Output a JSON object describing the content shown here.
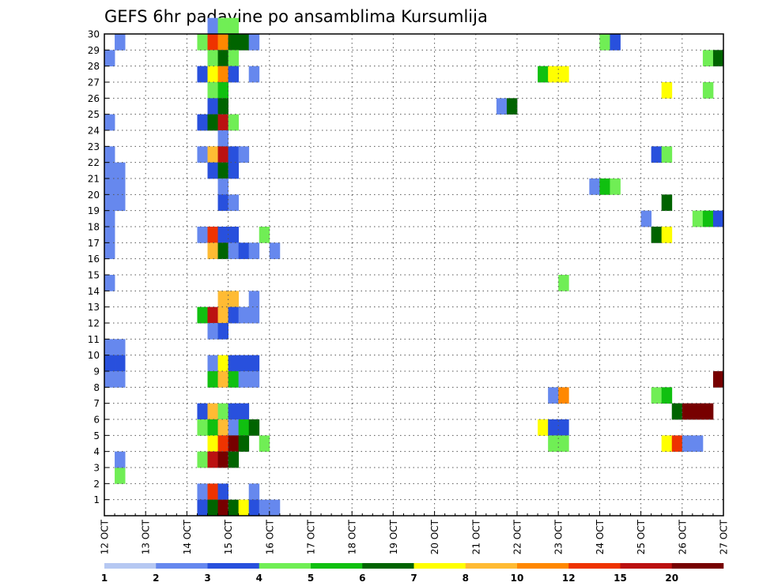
{
  "chart_data": {
    "type": "heatmap",
    "title": "GEFS 6hr padavine po ansamblima Kursumlija",
    "xlabel": "",
    "ylabel": "",
    "x_tick_labels": [
      "12 OCT",
      "13 OCT",
      "14 OCT",
      "15 OCT",
      "16 OCT",
      "17 OCT",
      "18 OCT",
      "19 OCT",
      "20 OCT",
      "21 OCT",
      "22 OCT",
      "23 OCT",
      "24 OCT",
      "25 OCT",
      "26 OCT",
      "27 OCT"
    ],
    "y_tick_labels": [
      "1",
      "2",
      "3",
      "4",
      "5",
      "6",
      "7",
      "8",
      "9",
      "10",
      "11",
      "12",
      "13",
      "14",
      "15",
      "16",
      "17",
      "18",
      "19",
      "20",
      "21",
      "22",
      "23",
      "24",
      "25",
      "26",
      "27",
      "28",
      "29",
      "30"
    ],
    "x_range_days": [
      0,
      15
    ],
    "y_range": [
      0,
      30
    ],
    "time_step_hours": 6,
    "grid": "dotted",
    "colorbar": {
      "labels": [
        "1",
        "2",
        "3",
        "4",
        "5",
        "6",
        "7",
        "8",
        "10",
        "12",
        "15",
        "20"
      ],
      "colors": [
        "#b6c8f2",
        "#6688ee",
        "#2850dd",
        "#70ee55",
        "#10c010",
        "#006400",
        "#ffff00",
        "#ffbb33",
        "#ff8800",
        "#ee3300",
        "#bb1111",
        "#770000"
      ]
    },
    "cells": [
      [
        0.25,
        2,
        3
      ],
      [
        0.25,
        29,
        1
      ],
      [
        0.0,
        28,
        1
      ],
      [
        0.0,
        24,
        1
      ],
      [
        0.0,
        22,
        1
      ],
      [
        0.0,
        21,
        1
      ],
      [
        0.25,
        21,
        1
      ],
      [
        0.0,
        20,
        1
      ],
      [
        0.25,
        20,
        1
      ],
      [
        0.0,
        19,
        1
      ],
      [
        0.25,
        19,
        1
      ],
      [
        0.0,
        18,
        1
      ],
      [
        0.0,
        17,
        1
      ],
      [
        0.0,
        16,
        1
      ],
      [
        0.0,
        14,
        1
      ],
      [
        0.0,
        10,
        1
      ],
      [
        0.25,
        10,
        1
      ],
      [
        0.0,
        9,
        2
      ],
      [
        0.25,
        9,
        2
      ],
      [
        0.0,
        8,
        1
      ],
      [
        0.25,
        8,
        1
      ],
      [
        0.25,
        3,
        1
      ],
      [
        2.25,
        29,
        3
      ],
      [
        2.5,
        29,
        9
      ],
      [
        2.75,
        29,
        8
      ],
      [
        3.0,
        29,
        5
      ],
      [
        3.25,
        29,
        5
      ],
      [
        3.5,
        29,
        1
      ],
      [
        2.5,
        30,
        1
      ],
      [
        2.75,
        30,
        3
      ],
      [
        3.0,
        30,
        3
      ],
      [
        2.5,
        28,
        3
      ],
      [
        2.75,
        28,
        5
      ],
      [
        3.0,
        28,
        3
      ],
      [
        2.25,
        27,
        2
      ],
      [
        2.5,
        27,
        6
      ],
      [
        2.75,
        27,
        8
      ],
      [
        3.0,
        27,
        2
      ],
      [
        3.5,
        27,
        1
      ],
      [
        2.5,
        26,
        3
      ],
      [
        2.75,
        26,
        4
      ],
      [
        2.5,
        25,
        2
      ],
      [
        2.75,
        25,
        5
      ],
      [
        2.25,
        24,
        2
      ],
      [
        2.5,
        24,
        5
      ],
      [
        2.75,
        24,
        10
      ],
      [
        3.0,
        24,
        3
      ],
      [
        2.75,
        23,
        1
      ],
      [
        2.25,
        22,
        1
      ],
      [
        2.5,
        22,
        7
      ],
      [
        2.75,
        22,
        10
      ],
      [
        3.0,
        22,
        2
      ],
      [
        3.25,
        22,
        1
      ],
      [
        2.5,
        21,
        2
      ],
      [
        2.75,
        21,
        5
      ],
      [
        3.0,
        21,
        2
      ],
      [
        2.75,
        20,
        1
      ],
      [
        2.75,
        19,
        2
      ],
      [
        3.0,
        19,
        1
      ],
      [
        2.25,
        17,
        1
      ],
      [
        2.5,
        17,
        9
      ],
      [
        2.75,
        17,
        2
      ],
      [
        3.0,
        17,
        2
      ],
      [
        3.75,
        17,
        3
      ],
      [
        2.5,
        16,
        7
      ],
      [
        2.75,
        16,
        5
      ],
      [
        3.0,
        16,
        1
      ],
      [
        3.25,
        16,
        2
      ],
      [
        3.5,
        16,
        1
      ],
      [
        4.0,
        16,
        1
      ],
      [
        2.75,
        13,
        7
      ],
      [
        3.0,
        13,
        7
      ],
      [
        3.5,
        13,
        1
      ],
      [
        2.25,
        12,
        4
      ],
      [
        2.5,
        12,
        10
      ],
      [
        2.75,
        12,
        7
      ],
      [
        3.0,
        12,
        2
      ],
      [
        3.25,
        12,
        1
      ],
      [
        3.5,
        12,
        1
      ],
      [
        2.5,
        11,
        1
      ],
      [
        2.75,
        11,
        2
      ],
      [
        2.5,
        9,
        1
      ],
      [
        2.75,
        9,
        6
      ],
      [
        3.0,
        9,
        2
      ],
      [
        3.25,
        9,
        2
      ],
      [
        3.5,
        9,
        2
      ],
      [
        2.5,
        8,
        4
      ],
      [
        2.75,
        8,
        7
      ],
      [
        3.0,
        8,
        4
      ],
      [
        3.25,
        8,
        1
      ],
      [
        3.5,
        8,
        1
      ],
      [
        2.25,
        6,
        2
      ],
      [
        2.5,
        6,
        7
      ],
      [
        2.75,
        6,
        3
      ],
      [
        3.0,
        6,
        2
      ],
      [
        3.25,
        6,
        2
      ],
      [
        2.25,
        5,
        3
      ],
      [
        2.5,
        5,
        4
      ],
      [
        2.75,
        5,
        7
      ],
      [
        3.0,
        5,
        1
      ],
      [
        3.25,
        5,
        4
      ],
      [
        3.5,
        5,
        5
      ],
      [
        2.5,
        4,
        6
      ],
      [
        2.75,
        4,
        9
      ],
      [
        3.0,
        4,
        11
      ],
      [
        3.25,
        4,
        5
      ],
      [
        3.75,
        4,
        3
      ],
      [
        2.25,
        3,
        3
      ],
      [
        2.5,
        3,
        10
      ],
      [
        2.75,
        3,
        11
      ],
      [
        3.0,
        3,
        5
      ],
      [
        2.25,
        1,
        1
      ],
      [
        2.5,
        1,
        9
      ],
      [
        2.75,
        1,
        2
      ],
      [
        3.5,
        1,
        1
      ],
      [
        2.25,
        0,
        2
      ],
      [
        2.5,
        0,
        5
      ],
      [
        2.75,
        0,
        11
      ],
      [
        3.0,
        0,
        5
      ],
      [
        3.25,
        0,
        6
      ],
      [
        3.5,
        0,
        2
      ],
      [
        3.75,
        0,
        1
      ],
      [
        4.0,
        0,
        1
      ],
      [
        12.0,
        29,
        3
      ],
      [
        12.25,
        29,
        2
      ],
      [
        10.5,
        27,
        4
      ],
      [
        10.75,
        27,
        6
      ],
      [
        11.0,
        27,
        6
      ],
      [
        9.5,
        25,
        1
      ],
      [
        9.75,
        25,
        5
      ],
      [
        11.75,
        20,
        1
      ],
      [
        12.0,
        20,
        4
      ],
      [
        12.25,
        20,
        3
      ],
      [
        13.25,
        22,
        2
      ],
      [
        13.5,
        22,
        3
      ],
      [
        13.5,
        19,
        5
      ],
      [
        13.0,
        18,
        1
      ],
      [
        14.25,
        18,
        3
      ],
      [
        14.5,
        18,
        4
      ],
      [
        14.75,
        18,
        2
      ],
      [
        13.25,
        17,
        5
      ],
      [
        13.5,
        17,
        6
      ],
      [
        13.5,
        26,
        6
      ],
      [
        14.5,
        26,
        3
      ],
      [
        14.5,
        28,
        3
      ],
      [
        14.75,
        28,
        5
      ],
      [
        11.0,
        14,
        3
      ],
      [
        14.75,
        8,
        11
      ],
      [
        10.75,
        7,
        1
      ],
      [
        11.0,
        7,
        8
      ],
      [
        13.25,
        7,
        3
      ],
      [
        13.5,
        7,
        4
      ],
      [
        13.75,
        6,
        5
      ],
      [
        14.0,
        6,
        11
      ],
      [
        14.25,
        6,
        11
      ],
      [
        14.5,
        6,
        11
      ],
      [
        10.5,
        5,
        6
      ],
      [
        10.75,
        5,
        2
      ],
      [
        11.0,
        5,
        2
      ],
      [
        10.75,
        4,
        3
      ],
      [
        11.0,
        4,
        3
      ],
      [
        13.5,
        4,
        6
      ],
      [
        13.75,
        4,
        9
      ],
      [
        14.0,
        4,
        1
      ],
      [
        14.25,
        4,
        1
      ]
    ]
  }
}
